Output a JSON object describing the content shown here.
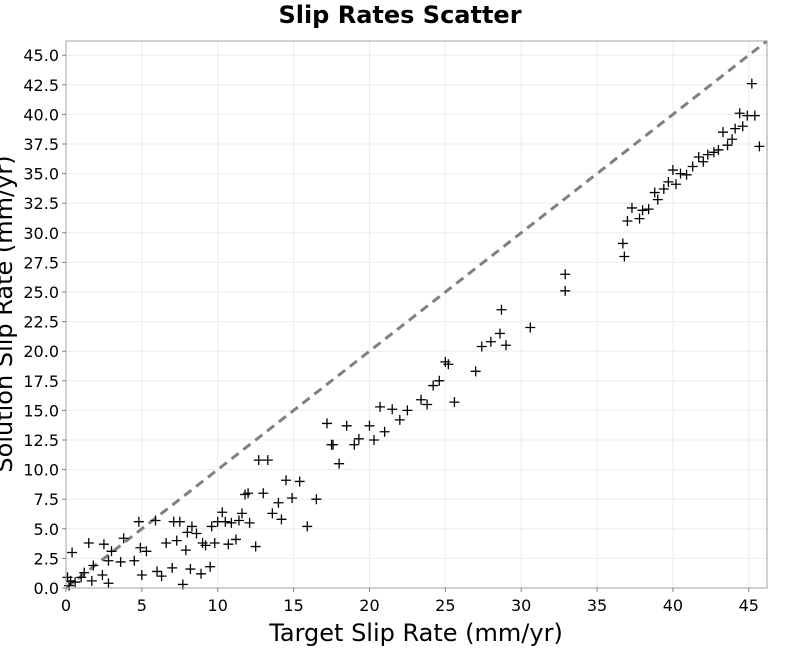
{
  "chart_data": {
    "type": "scatter",
    "title": "Slip Rates Scatter",
    "xlabel": "Target Slip Rate (mm/yr)",
    "ylabel": "Solution Slip Rate (mm/yr)",
    "xlim": [
      0,
      46.2
    ],
    "ylim": [
      0,
      46.2
    ],
    "xticks": [
      0,
      5,
      10,
      15,
      20,
      25,
      30,
      35,
      40,
      45
    ],
    "yticks": [
      0.0,
      2.5,
      5.0,
      7.5,
      10.0,
      12.5,
      15.0,
      17.5,
      20.0,
      22.5,
      25.0,
      27.5,
      30.0,
      32.5,
      35.0,
      37.5,
      40.0,
      42.5,
      45.0
    ],
    "grid": true,
    "marker": "plus",
    "marker_color": "#000000",
    "reference_line": {
      "style": "dashed",
      "color": "#808080",
      "x": [
        0,
        46.2
      ],
      "y": [
        0,
        46.2
      ]
    },
    "x": [
      0.1,
      0.2,
      0.3,
      0.4,
      0.6,
      1.0,
      1.2,
      1.5,
      1.7,
      1.8,
      2.4,
      2.5,
      2.8,
      2.8,
      3.0,
      3.6,
      3.8,
      4.5,
      4.8,
      4.9,
      5.0,
      5.3,
      5.9,
      6.0,
      6.3,
      6.6,
      7.0,
      7.1,
      7.3,
      7.5,
      7.7,
      7.9,
      8.0,
      8.2,
      8.3,
      8.6,
      8.9,
      9.0,
      9.2,
      9.5,
      9.6,
      9.8,
      10.0,
      10.3,
      10.5,
      10.7,
      10.9,
      11.2,
      11.4,
      11.6,
      11.8,
      12.0,
      12.1,
      12.5,
      12.7,
      13.0,
      13.3,
      13.6,
      14.0,
      14.2,
      14.5,
      14.9,
      15.4,
      15.9,
      16.5,
      17.2,
      17.5,
      17.6,
      18.0,
      18.5,
      19.0,
      19.3,
      20.0,
      20.3,
      20.7,
      21.0,
      21.5,
      22.0,
      22.5,
      23.4,
      23.8,
      24.2,
      24.6,
      25.0,
      25.2,
      25.6,
      27.0,
      27.4,
      28.0,
      28.6,
      28.7,
      29.0,
      30.6,
      32.9,
      32.9,
      36.7,
      36.8,
      37.0,
      37.3,
      37.8,
      38.0,
      38.4,
      38.8,
      39.0,
      39.4,
      39.7,
      40.0,
      40.2,
      40.5,
      40.9,
      41.3,
      41.7,
      42.0,
      42.3,
      42.7,
      43.0,
      43.3,
      43.6,
      43.9,
      44.1,
      44.4,
      44.6,
      44.9,
      45.2,
      45.4,
      45.7
    ],
    "y": [
      0.9,
      0.2,
      0.6,
      3.0,
      0.5,
      0.9,
      1.3,
      3.8,
      0.6,
      1.9,
      1.1,
      3.7,
      0.4,
      2.3,
      3.1,
      2.2,
      4.2,
      2.3,
      5.6,
      3.4,
      1.1,
      3.1,
      5.7,
      1.4,
      1.0,
      3.8,
      1.7,
      5.6,
      4.0,
      5.6,
      0.3,
      3.2,
      4.7,
      1.6,
      5.2,
      4.6,
      1.2,
      3.8,
      3.6,
      1.8,
      5.2,
      3.8,
      5.6,
      6.4,
      5.6,
      3.7,
      5.5,
      4.1,
      5.7,
      6.3,
      7.9,
      8.0,
      5.5,
      3.5,
      10.8,
      8.0,
      10.8,
      6.3,
      7.2,
      5.8,
      9.1,
      7.6,
      9.0,
      5.2,
      7.5,
      13.9,
      12.1,
      12.1,
      10.5,
      13.7,
      12.1,
      12.6,
      13.7,
      12.5,
      15.3,
      13.2,
      15.1,
      14.2,
      15.0,
      15.9,
      15.5,
      17.1,
      17.5,
      19.1,
      18.9,
      15.7,
      18.3,
      20.4,
      20.8,
      21.5,
      23.5,
      20.5,
      22.0,
      26.5,
      25.1,
      29.1,
      28.0,
      31.0,
      32.1,
      31.2,
      31.9,
      32.0,
      33.4,
      32.8,
      33.7,
      34.3,
      35.3,
      34.1,
      35.0,
      34.9,
      35.6,
      36.4,
      36.0,
      36.6,
      36.8,
      37.0,
      38.5,
      37.4,
      37.9,
      38.8,
      40.1,
      39.0,
      39.9,
      42.6,
      39.9,
      37.3
    ]
  }
}
